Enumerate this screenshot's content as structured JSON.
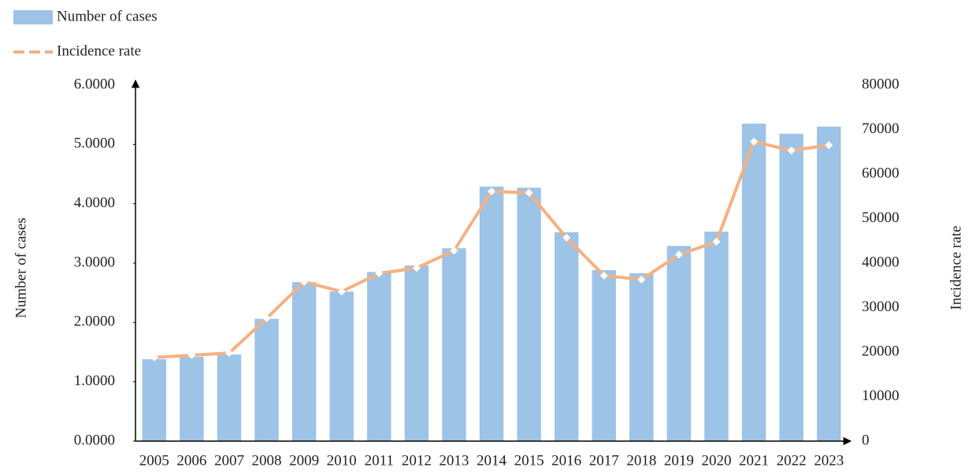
{
  "chart_data": {
    "type": "bar",
    "categories": [
      "2005",
      "2006",
      "2007",
      "2008",
      "2009",
      "2010",
      "2011",
      "2012",
      "2013",
      "2014",
      "2015",
      "2016",
      "2017",
      "2018",
      "2019",
      "2020",
      "2021",
      "2022",
      "2023"
    ],
    "series": [
      {
        "name": "Number of cases",
        "type": "bar",
        "color": "#9dc3e6",
        "values": [
          1.38,
          1.42,
          1.46,
          2.06,
          2.68,
          2.52,
          2.85,
          2.96,
          3.25,
          4.29,
          4.27,
          3.52,
          2.88,
          2.83,
          3.29,
          3.53,
          5.35,
          5.18,
          5.3
        ]
      },
      {
        "name": "Incidence rate",
        "type": "line",
        "axis": "y2",
        "color": "#f4b183",
        "values": [
          18800,
          19300,
          19800,
          27600,
          35800,
          33600,
          37700,
          38900,
          42800,
          56100,
          55800,
          45700,
          37200,
          36300,
          41900,
          44800,
          67300,
          65300,
          66500
        ]
      }
    ],
    "y_label": "Number of cases",
    "y2_label": "Incidence rate",
    "ylim": [
      0,
      6
    ],
    "yticks": [
      {
        "value": 0,
        "label": "0.0000"
      },
      {
        "value": 1,
        "label": "1.0000"
      },
      {
        "value": 2,
        "label": "2.0000"
      },
      {
        "value": 3,
        "label": "3.0000"
      },
      {
        "value": 4,
        "label": "4.0000"
      },
      {
        "value": 5,
        "label": "5.0000"
      },
      {
        "value": 6,
        "label": "6.0000"
      }
    ],
    "y2lim": [
      0,
      80000
    ],
    "y2ticks": [
      0,
      10000,
      20000,
      30000,
      40000,
      50000,
      60000,
      70000,
      80000
    ],
    "legend": "top-left",
    "grid": false
  }
}
